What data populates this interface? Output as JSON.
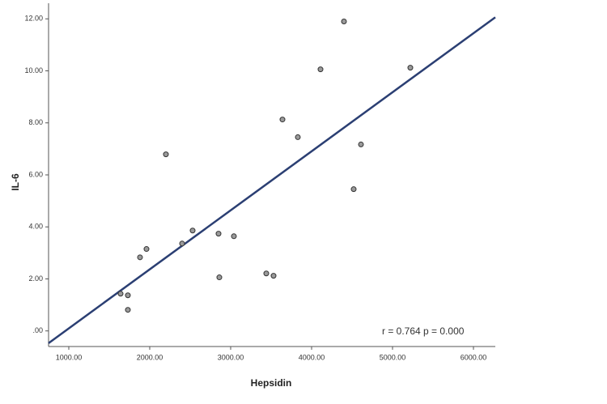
{
  "chart_data": {
    "type": "scatter",
    "x_label": "Hepsidin",
    "y_label": "IL-6",
    "annotation": "r = 0.764  p = 0.000",
    "series": [
      {
        "color": "#9a9a9a",
        "x": [
          1640,
          1730,
          1730,
          1880,
          1960,
          2200,
          2400,
          2530,
          2850,
          2860,
          3040,
          3440,
          3530,
          3640,
          3830,
          4110,
          4400,
          4520,
          4610,
          5220
        ],
        "values": [
          1.43,
          1.37,
          0.81,
          2.83,
          3.15,
          6.79,
          3.36,
          3.86,
          3.74,
          2.06,
          3.64,
          2.21,
          2.12,
          8.13,
          7.45,
          10.06,
          11.9,
          5.45,
          7.17,
          10.12
        ]
      }
    ],
    "fit_line": {
      "color": "#2b3f73",
      "x": [
        750,
        6270
      ],
      "y": [
        -0.47,
        12.06
      ]
    },
    "xlim": [
      750,
      6270
    ],
    "ylim": [
      -0.6,
      12.6
    ],
    "xticks": [
      {
        "value": 1000,
        "label": "1000.00"
      },
      {
        "value": 2000,
        "label": "2000.00"
      },
      {
        "value": 3000,
        "label": "3000.00"
      },
      {
        "value": 4000,
        "label": "4000.00"
      },
      {
        "value": 5000,
        "label": "5000.00"
      },
      {
        "value": 6000,
        "label": "6000.00"
      }
    ],
    "yticks": [
      {
        "value": 0,
        "label": ".00"
      },
      {
        "value": 2,
        "label": "2.00"
      },
      {
        "value": 4,
        "label": "4.00"
      },
      {
        "value": 6,
        "label": "6.00"
      },
      {
        "value": 8,
        "label": "8.00"
      },
      {
        "value": 10,
        "label": "10.00"
      },
      {
        "value": 12,
        "label": "12.00"
      }
    ]
  }
}
